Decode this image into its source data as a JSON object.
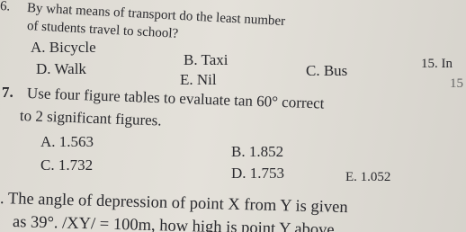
{
  "q6": {
    "number": "6.",
    "line1": "By what means of transport do the least number",
    "line2": "of students travel to school?",
    "options": [
      "A. Bicycle",
      "B. Taxi",
      "C. Bus",
      "D. Walk",
      "E. Nil"
    ]
  },
  "q7": {
    "number": "7.",
    "line1": "Use four figure tables to evaluate tan 60° correct",
    "line2": "to 2 significant figures.",
    "options": [
      "A. 1.563",
      "B. 1.852",
      "C. 1.732",
      "D. 1.753",
      "E. 1.052"
    ]
  },
  "q8": {
    "line1": ". The angle of depression of point X from Y is given",
    "line2": "as 39°. /XY/ = 100m, how high is point Y above"
  },
  "side": {
    "line1": "15. In",
    "line2": "15"
  }
}
